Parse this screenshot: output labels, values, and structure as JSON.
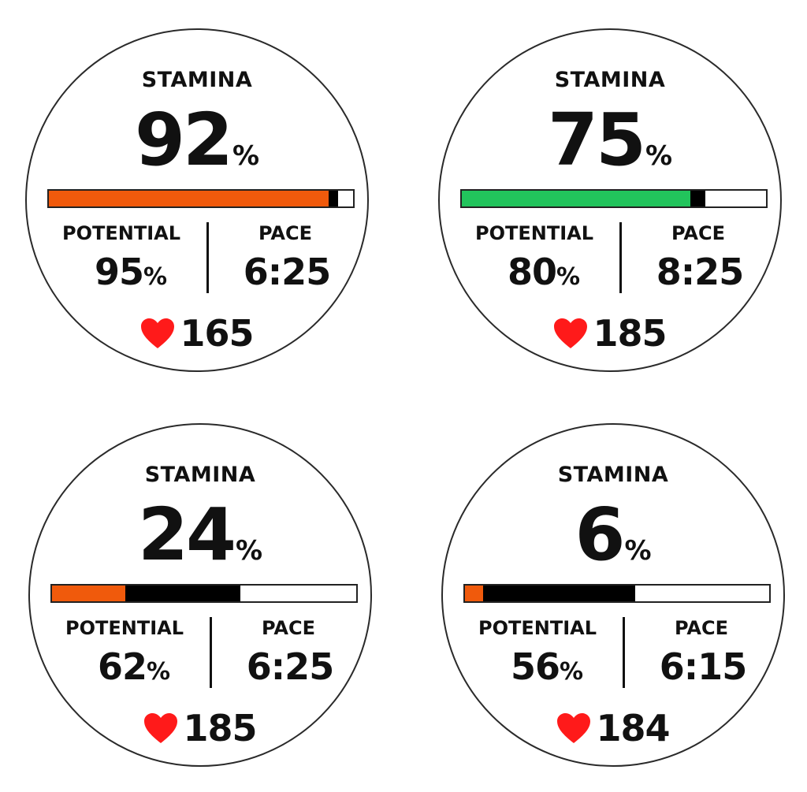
{
  "colors": {
    "orange": "#f05a0c",
    "green": "#22c45c",
    "potential": "#000000",
    "heart": "#ff1a1a"
  },
  "faces": [
    {
      "title": "STAMINA",
      "stamina_value": "92",
      "stamina_unit": "%",
      "bar_color": "orange",
      "stamina_level": 0.92,
      "potential_level": 0.95,
      "potential_label": "POTENTIAL",
      "potential_value": "95",
      "potential_unit": "%",
      "pace_label": "PACE",
      "pace_value": "6:25",
      "heart_icon": "heart-icon",
      "heart_rate": "165"
    },
    {
      "title": "STAMINA",
      "stamina_value": "75",
      "stamina_unit": "%",
      "bar_color": "green",
      "stamina_level": 0.75,
      "potential_level": 0.8,
      "potential_label": "POTENTIAL",
      "potential_value": "80",
      "potential_unit": "%",
      "pace_label": "PACE",
      "pace_value": "8:25",
      "heart_icon": "heart-icon",
      "heart_rate": "185"
    },
    {
      "title": "STAMINA",
      "stamina_value": "24",
      "stamina_unit": "%",
      "bar_color": "orange",
      "stamina_level": 0.24,
      "potential_level": 0.62,
      "potential_label": "POTENTIAL",
      "potential_value": "62",
      "potential_unit": "%",
      "pace_label": "PACE",
      "pace_value": "6:25",
      "heart_icon": "heart-icon",
      "heart_rate": "185"
    },
    {
      "title": "STAMINA",
      "stamina_value": "6",
      "stamina_unit": "%",
      "bar_color": "orange",
      "stamina_level": 0.06,
      "potential_level": 0.56,
      "potential_label": "POTENTIAL",
      "potential_value": "56",
      "potential_unit": "%",
      "pace_label": "PACE",
      "pace_value": "6:15",
      "heart_icon": "heart-icon",
      "heart_rate": "184"
    }
  ]
}
